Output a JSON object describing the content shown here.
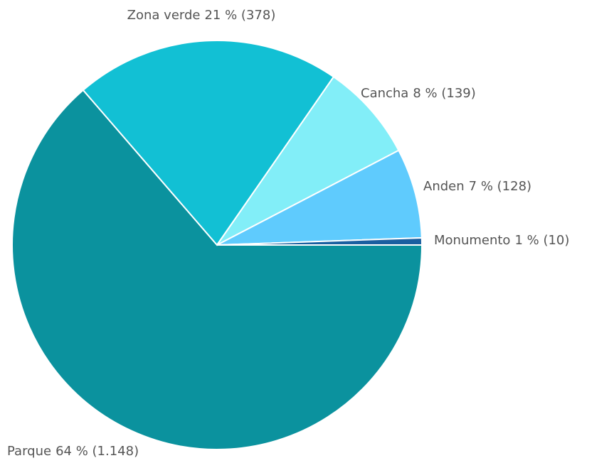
{
  "chart_data": {
    "type": "pie",
    "categories": [
      "Parque",
      "Zona verde",
      "Cancha",
      "Anden",
      "Monumento"
    ],
    "values": [
      1148,
      378,
      139,
      128,
      10
    ],
    "value_labels": [
      "64 % (1.148)",
      "21 % (378)",
      "8 % (139)",
      "7 % (128)",
      "1 % (10)"
    ],
    "colors": [
      "#0b929e",
      "#12c0d4",
      "#82eef8",
      "#5fcbfd",
      "#1a5fa0"
    ]
  }
}
